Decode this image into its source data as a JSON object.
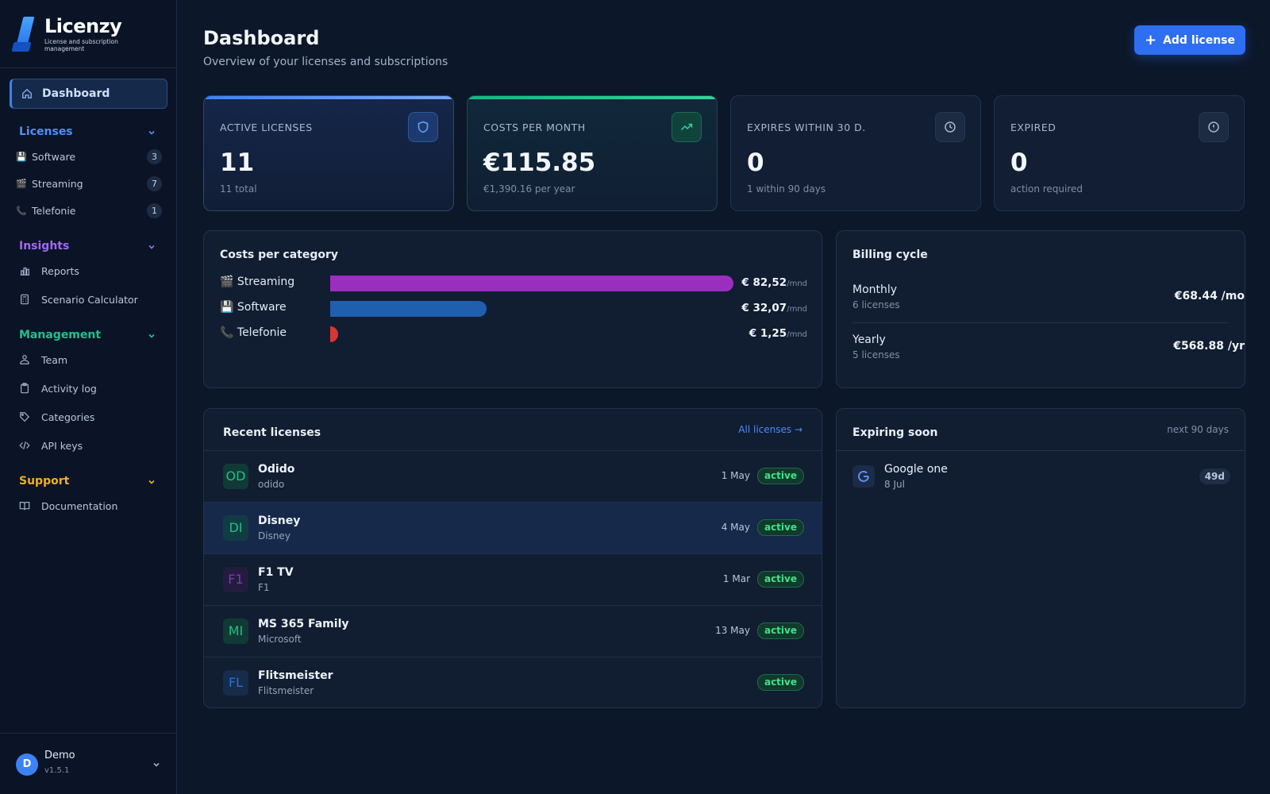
{
  "brand": {
    "name": "Licenzy",
    "subtitle": "License and subscription management"
  },
  "sidebar": {
    "active_item": "Dashboard",
    "sections": {
      "licenses": {
        "title": "Licenses",
        "color": "#4f8ff7",
        "items": [
          {
            "emoji": "💾",
            "label": "Software",
            "count": "3"
          },
          {
            "emoji": "🎬",
            "label": "Streaming",
            "count": "7"
          },
          {
            "emoji": "📞",
            "label": "Telefonie",
            "count": "1"
          }
        ]
      },
      "insights": {
        "title": "Insights",
        "color": "#a467f5",
        "items": [
          {
            "icon": "bar-chart-icon",
            "label": "Reports"
          },
          {
            "icon": "calculator-icon",
            "label": "Scenario Calculator"
          }
        ]
      },
      "management": {
        "title": "Management",
        "color": "#21c08b",
        "items": [
          {
            "icon": "team-icon",
            "label": "Team"
          },
          {
            "icon": "clipboard-icon",
            "label": "Activity log"
          },
          {
            "icon": "tag-icon",
            "label": "Categories"
          },
          {
            "icon": "code-icon",
            "label": "API keys"
          }
        ]
      },
      "support": {
        "title": "Support",
        "color": "#f2b01e",
        "items": [
          {
            "icon": "book-icon",
            "label": "Documentation"
          }
        ]
      }
    },
    "user": {
      "initial": "D",
      "name": "Demo",
      "version": "v1.5.1"
    }
  },
  "header": {
    "title": "Dashboard",
    "subtitle": "Overview of your licenses and subscriptions",
    "add_button": "Add license"
  },
  "stats": [
    {
      "label": "ACTIVE LICENSES",
      "value": "11",
      "sub": "11 total",
      "accent": "#3b82f6",
      "icon": "shield-icon"
    },
    {
      "label": "COSTS PER MONTH",
      "value": "€115.85",
      "sub": "€1,390.16 per year",
      "accent": "#10b981",
      "icon": "trending-up-icon"
    },
    {
      "label": "EXPIRES WITHIN 30 D.",
      "value": "0",
      "sub": "1 within 90 days",
      "accent": "",
      "icon": "clock-icon"
    },
    {
      "label": "EXPIRED",
      "value": "0",
      "sub": "action required",
      "accent": "",
      "icon": "alert-circle-icon"
    }
  ],
  "costs_per_category": {
    "title": "Costs per category",
    "unit": "/mnd",
    "items": [
      {
        "emoji": "🎬",
        "label": "Streaming",
        "value": "€ 82,52",
        "amount": 82.52,
        "color": "#9a2fbf"
      },
      {
        "emoji": "💾",
        "label": "Software",
        "value": "€ 32,07",
        "amount": 32.07,
        "color": "#1f5fae"
      },
      {
        "emoji": "📞",
        "label": "Telefonie",
        "value": "€ 1,25",
        "amount": 1.25,
        "color": "#d93636"
      }
    ]
  },
  "billing_cycle": {
    "title": "Billing cycle",
    "rows": [
      {
        "name": "Monthly",
        "count": "6 licenses",
        "amount": "€68.44 /mo"
      },
      {
        "name": "Yearly",
        "count": "5 licenses",
        "amount": "€568.88 /yr"
      }
    ]
  },
  "recent_licenses": {
    "title": "Recent licenses",
    "link": "All licenses →",
    "rows": [
      {
        "initials": "OD",
        "name": "Odido",
        "vendor": "odido",
        "date": "1 May",
        "status": "active",
        "color": "#1fc184",
        "bg": "#113a36"
      },
      {
        "initials": "DI",
        "name": "Disney",
        "vendor": "Disney",
        "date": "4 May",
        "status": "active",
        "color": "#1fc184",
        "bg": "#123c44"
      },
      {
        "initials": "F1",
        "name": "F1 TV",
        "vendor": "F1",
        "date": "1 Mar",
        "status": "active",
        "color": "#8b2fc0",
        "bg": "#221d3e"
      },
      {
        "initials": "MI",
        "name": "MS 365 Family",
        "vendor": "Microsoft",
        "date": "13 May",
        "status": "active",
        "color": "#1fc184",
        "bg": "#113a36"
      },
      {
        "initials": "FL",
        "name": "Flitsmeister",
        "vendor": "Flitsmeister",
        "date": "",
        "status": "active",
        "color": "#2b72d6",
        "bg": "#172b4a"
      }
    ]
  },
  "expiring_soon": {
    "title": "Expiring soon",
    "range": "next 90 days",
    "rows": [
      {
        "icon": "google-icon",
        "name": "Google one",
        "date": "8 Jul",
        "days": "49d"
      }
    ]
  }
}
